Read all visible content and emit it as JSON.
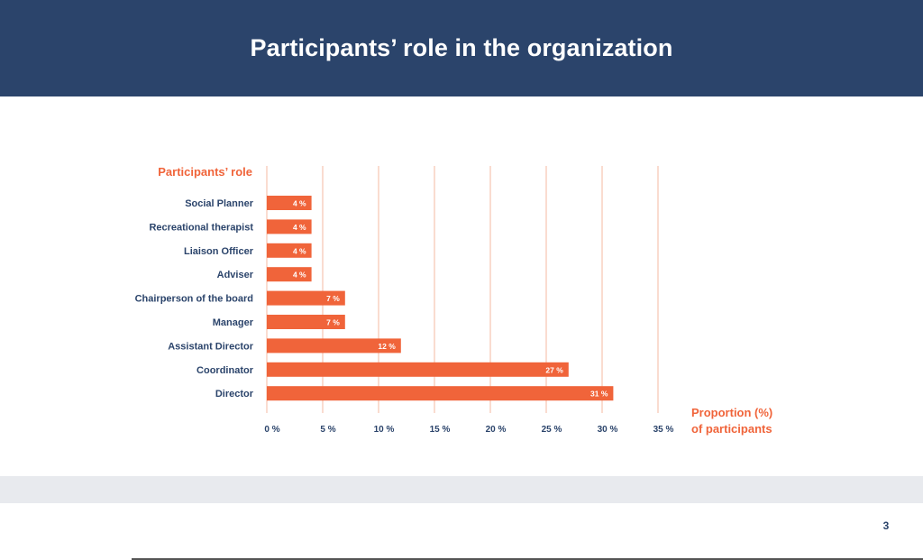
{
  "header": {
    "title": "Participants’ role in the organization"
  },
  "page": {
    "number": "3"
  },
  "colors": {
    "header_bg": "#2b446b",
    "bar": "#f0643a",
    "accent_text": "#f0643a",
    "label_text": "#2b446b",
    "grid": "#f4b8a2"
  },
  "chart_data": {
    "type": "bar",
    "orientation": "horizontal",
    "y_axis_title": "Participants’ role",
    "x_axis_title_lines": [
      "Proportion (%)",
      "of participants"
    ],
    "categories": [
      "Social Planner",
      "Recreational therapist",
      "Liaison Officer",
      "Adviser",
      "Chairperson of the board",
      "Manager",
      "Assistant Director",
      "Coordinator",
      "Director"
    ],
    "values": [
      4,
      4,
      4,
      4,
      7,
      7,
      12,
      27,
      31
    ],
    "value_labels": [
      "4 %",
      "4 %",
      "4 %",
      "4 %",
      "7 %",
      "7 %",
      "12 %",
      "27 %",
      "31 %"
    ],
    "x_ticks": [
      0,
      5,
      10,
      15,
      20,
      25,
      30,
      35
    ],
    "x_tick_labels": [
      "0 %",
      "5 %",
      "10 %",
      "15 %",
      "20 %",
      "25 %",
      "30 %",
      "35 %"
    ],
    "xlim": [
      0,
      35
    ],
    "grid": true,
    "legend": "none"
  }
}
